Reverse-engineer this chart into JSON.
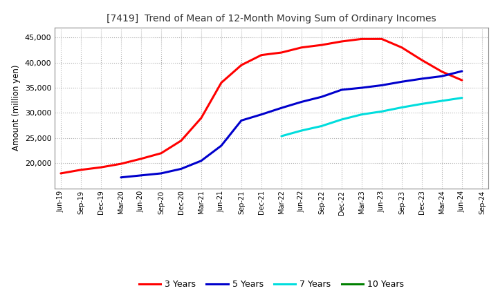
{
  "title": "[7419]  Trend of Mean of 12-Month Moving Sum of Ordinary Incomes",
  "ylabel": "Amount (million yen)",
  "background_color": "#ffffff",
  "grid_color": "#b0b0b0",
  "x_labels": [
    "Jun-19",
    "Sep-19",
    "Dec-19",
    "Mar-20",
    "Jun-20",
    "Sep-20",
    "Dec-20",
    "Mar-21",
    "Jun-21",
    "Sep-21",
    "Dec-21",
    "Mar-22",
    "Jun-22",
    "Sep-22",
    "Dec-22",
    "Mar-23",
    "Jun-23",
    "Sep-23",
    "Dec-23",
    "Mar-24",
    "Jun-24",
    "Sep-24"
  ],
  "ylim": [
    15000,
    47000
  ],
  "yticks": [
    20000,
    25000,
    30000,
    35000,
    40000,
    45000
  ],
  "series": {
    "3 Years": {
      "color": "#ff0000",
      "data_x": [
        0,
        1,
        2,
        3,
        4,
        5,
        6,
        7,
        8,
        9,
        10,
        11,
        12,
        13,
        14,
        15,
        16,
        17,
        18,
        19,
        20
      ],
      "data_y": [
        18000,
        18700,
        19200,
        19900,
        20900,
        22000,
        24500,
        29000,
        36000,
        39500,
        41500,
        42000,
        43000,
        43500,
        44200,
        44700,
        44700,
        43000,
        40500,
        38200,
        36500
      ]
    },
    "5 Years": {
      "color": "#0000cc",
      "data_x": [
        3,
        4,
        5,
        6,
        7,
        8,
        9,
        10,
        11,
        12,
        13,
        14,
        15,
        16,
        17,
        18,
        19,
        20
      ],
      "data_y": [
        17200,
        17600,
        18000,
        18900,
        20500,
        23500,
        28500,
        29700,
        31000,
        32200,
        33200,
        34600,
        35000,
        35500,
        36200,
        36800,
        37300,
        38300
      ]
    },
    "7 Years": {
      "color": "#00dddd",
      "data_x": [
        11,
        12,
        13,
        14,
        15,
        16,
        17,
        18,
        19,
        20
      ],
      "data_y": [
        25400,
        26500,
        27400,
        28700,
        29700,
        30300,
        31100,
        31800,
        32400,
        33000
      ]
    },
    "10 Years": {
      "color": "#008000",
      "data_x": [],
      "data_y": []
    }
  },
  "legend_labels": [
    "3 Years",
    "5 Years",
    "7 Years",
    "10 Years"
  ],
  "legend_colors": [
    "#ff0000",
    "#0000cc",
    "#00dddd",
    "#008000"
  ]
}
